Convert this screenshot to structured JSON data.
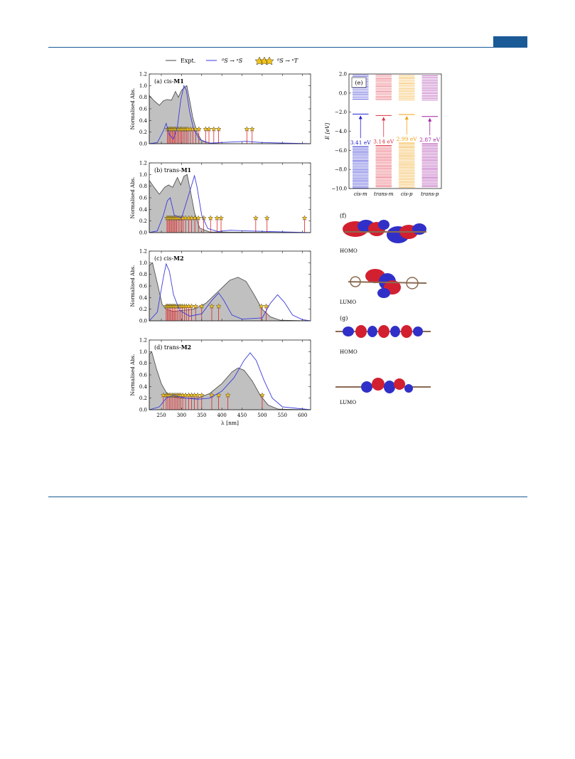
{
  "header": {
    "accent_color": "#1a5a96"
  },
  "legend": {
    "expt_label": "Expt.",
    "singlet_label": "⁰S → ⁿS",
    "triplet_label": "⁰S → ⁿT"
  },
  "colors": {
    "expt_fill": "#c0c0c0",
    "singlet": "#3a3ae0",
    "triplet": "#e02020",
    "star": "#f2c21a",
    "cis_m": "#2020d0",
    "trans_m": "#e03040",
    "cis_p": "#f0a010",
    "trans_p": "#a020a0"
  },
  "chart_data": [
    {
      "panel": "a",
      "type": "line",
      "label_prefix": "(a) cis-",
      "label_bold": "M1",
      "ylabel": "Normalised Abs.",
      "xlim": [
        220,
        620
      ],
      "ylim": [
        0,
        1.2
      ],
      "expt": [
        [
          220,
          0.83
        ],
        [
          232,
          0.74
        ],
        [
          245,
          0.66
        ],
        [
          255,
          0.74
        ],
        [
          265,
          0.76
        ],
        [
          275,
          0.75
        ],
        [
          285,
          0.9
        ],
        [
          292,
          0.8
        ],
        [
          300,
          0.92
        ],
        [
          308,
          0.97
        ],
        [
          313,
          1.0
        ],
        [
          320,
          0.75
        ],
        [
          328,
          0.45
        ],
        [
          338,
          0.2
        ],
        [
          350,
          0.05
        ],
        [
          370,
          0.01
        ],
        [
          400,
          0.0
        ],
        [
          620,
          0.0
        ]
      ],
      "calc": [
        [
          220,
          0.0
        ],
        [
          240,
          0.02
        ],
        [
          255,
          0.22
        ],
        [
          262,
          0.35
        ],
        [
          270,
          0.15
        ],
        [
          280,
          0.08
        ],
        [
          290,
          0.3
        ],
        [
          298,
          0.75
        ],
        [
          306,
          1.0
        ],
        [
          312,
          0.92
        ],
        [
          320,
          0.55
        ],
        [
          330,
          0.25
        ],
        [
          345,
          0.07
        ],
        [
          370,
          0.01
        ],
        [
          460,
          0.04
        ],
        [
          500,
          0.02
        ],
        [
          620,
          0.0
        ]
      ],
      "triplets": [
        265,
        268,
        271,
        274,
        277,
        280,
        283,
        286,
        290,
        293,
        297,
        300,
        304,
        308,
        312,
        316,
        322,
        328,
        335,
        343,
        360,
        368,
        380,
        392,
        462,
        475
      ]
    },
    {
      "panel": "b",
      "type": "line",
      "label_prefix": "(b) trans-",
      "label_bold": "M1",
      "ylabel": "Normalised Abs.",
      "xlim": [
        220,
        620
      ],
      "ylim": [
        0,
        1.2
      ],
      "expt": [
        [
          220,
          0.9
        ],
        [
          232,
          0.78
        ],
        [
          245,
          0.66
        ],
        [
          258,
          0.78
        ],
        [
          268,
          0.82
        ],
        [
          278,
          0.78
        ],
        [
          290,
          0.95
        ],
        [
          298,
          0.82
        ],
        [
          306,
          0.97
        ],
        [
          314,
          1.0
        ],
        [
          322,
          0.72
        ],
        [
          332,
          0.35
        ],
        [
          345,
          0.08
        ],
        [
          370,
          0.01
        ],
        [
          620,
          0.0
        ]
      ],
      "calc": [
        [
          220,
          0.0
        ],
        [
          240,
          0.03
        ],
        [
          255,
          0.3
        ],
        [
          265,
          0.55
        ],
        [
          272,
          0.6
        ],
        [
          282,
          0.3
        ],
        [
          300,
          0.25
        ],
        [
          320,
          0.7
        ],
        [
          332,
          0.98
        ],
        [
          338,
          0.8
        ],
        [
          350,
          0.3
        ],
        [
          365,
          0.07
        ],
        [
          390,
          0.02
        ],
        [
          420,
          0.04
        ],
        [
          460,
          0.03
        ],
        [
          620,
          0.0
        ]
      ],
      "triplets": [
        264,
        267,
        270,
        273,
        276,
        279,
        282,
        285,
        288,
        292,
        296,
        300,
        304,
        310,
        318,
        325,
        333,
        342,
        355,
        372,
        388,
        398,
        484,
        512,
        605
      ]
    },
    {
      "panel": "c",
      "type": "line",
      "label_prefix": "(c) cis-",
      "label_bold": "M2",
      "ylabel": "Normalised Abs.",
      "xlim": [
        220,
        620
      ],
      "ylim": [
        0,
        1.2
      ],
      "expt": [
        [
          220,
          0.95
        ],
        [
          228,
          1.0
        ],
        [
          240,
          0.65
        ],
        [
          252,
          0.28
        ],
        [
          262,
          0.2
        ],
        [
          280,
          0.16
        ],
        [
          300,
          0.18
        ],
        [
          330,
          0.2
        ],
        [
          360,
          0.3
        ],
        [
          390,
          0.5
        ],
        [
          420,
          0.7
        ],
        [
          440,
          0.75
        ],
        [
          460,
          0.68
        ],
        [
          480,
          0.45
        ],
        [
          500,
          0.2
        ],
        [
          520,
          0.07
        ],
        [
          545,
          0.01
        ],
        [
          620,
          0.0
        ]
      ],
      "calc": [
        [
          220,
          0.0
        ],
        [
          240,
          0.15
        ],
        [
          255,
          0.75
        ],
        [
          262,
          0.98
        ],
        [
          270,
          0.85
        ],
        [
          280,
          0.45
        ],
        [
          295,
          0.18
        ],
        [
          320,
          0.08
        ],
        [
          350,
          0.12
        ],
        [
          375,
          0.35
        ],
        [
          392,
          0.48
        ],
        [
          405,
          0.35
        ],
        [
          425,
          0.1
        ],
        [
          450,
          0.03
        ],
        [
          500,
          0.05
        ],
        [
          520,
          0.3
        ],
        [
          538,
          0.45
        ],
        [
          555,
          0.32
        ],
        [
          575,
          0.1
        ],
        [
          600,
          0.02
        ],
        [
          620,
          0.0
        ]
      ],
      "triplets": [
        262,
        265,
        268,
        271,
        274,
        277,
        280,
        283,
        286,
        290,
        294,
        298,
        302,
        307,
        312,
        318,
        325,
        335,
        350,
        375,
        392,
        498,
        510
      ]
    },
    {
      "panel": "d",
      "type": "line",
      "label_prefix": "(d) trans-",
      "label_bold": "M2",
      "ylabel": "Normalised Abs.",
      "xlabel": "λ [nm]",
      "xlim": [
        220,
        620
      ],
      "ylim": [
        0,
        1.2
      ],
      "xticks": [
        250,
        300,
        350,
        400,
        450,
        500,
        550,
        600
      ],
      "expt": [
        [
          220,
          0.95
        ],
        [
          226,
          1.0
        ],
        [
          238,
          0.7
        ],
        [
          250,
          0.45
        ],
        [
          262,
          0.3
        ],
        [
          278,
          0.22
        ],
        [
          300,
          0.2
        ],
        [
          340,
          0.2
        ],
        [
          370,
          0.28
        ],
        [
          400,
          0.45
        ],
        [
          425,
          0.65
        ],
        [
          440,
          0.72
        ],
        [
          455,
          0.68
        ],
        [
          475,
          0.5
        ],
        [
          495,
          0.25
        ],
        [
          515,
          0.08
        ],
        [
          540,
          0.01
        ],
        [
          620,
          0.0
        ]
      ],
      "calc": [
        [
          220,
          0.0
        ],
        [
          245,
          0.05
        ],
        [
          262,
          0.2
        ],
        [
          280,
          0.25
        ],
        [
          310,
          0.2
        ],
        [
          340,
          0.18
        ],
        [
          370,
          0.2
        ],
        [
          400,
          0.32
        ],
        [
          430,
          0.55
        ],
        [
          455,
          0.85
        ],
        [
          470,
          0.98
        ],
        [
          485,
          0.85
        ],
        [
          505,
          0.5
        ],
        [
          525,
          0.2
        ],
        [
          550,
          0.05
        ],
        [
          620,
          0.0
        ]
      ],
      "triplets": [
        255,
        262,
        266,
        270,
        274,
        278,
        282,
        286,
        290,
        294,
        298,
        303,
        310,
        318,
        325,
        332,
        340,
        350,
        375,
        392,
        415,
        500
      ]
    },
    {
      "panel": "e",
      "type": "bar",
      "label": "(e)",
      "ylabel": "E [eV]",
      "ylim": [
        -10.0,
        2.0
      ],
      "yticks": [
        "2.0",
        "0.0",
        "−2.0",
        "−4.0",
        "−6.0",
        "−8.0",
        "−10.0"
      ],
      "categories": [
        "cis-m",
        "trans-m",
        "cis-p",
        "trans-p"
      ],
      "lumo": [
        -2.2,
        -2.35,
        -2.25,
        -2.45
      ],
      "homo": [
        -5.61,
        -5.49,
        -5.24,
        -5.32
      ],
      "gap_labels": [
        "3.41 eV",
        "3.14 eV",
        "2.99 eV",
        "2.87 eV"
      ]
    }
  ],
  "orbitals": {
    "f_label": "(f)",
    "g_label": "(g)",
    "homo_label": "HOMO",
    "lumo_label": "LUMO"
  }
}
